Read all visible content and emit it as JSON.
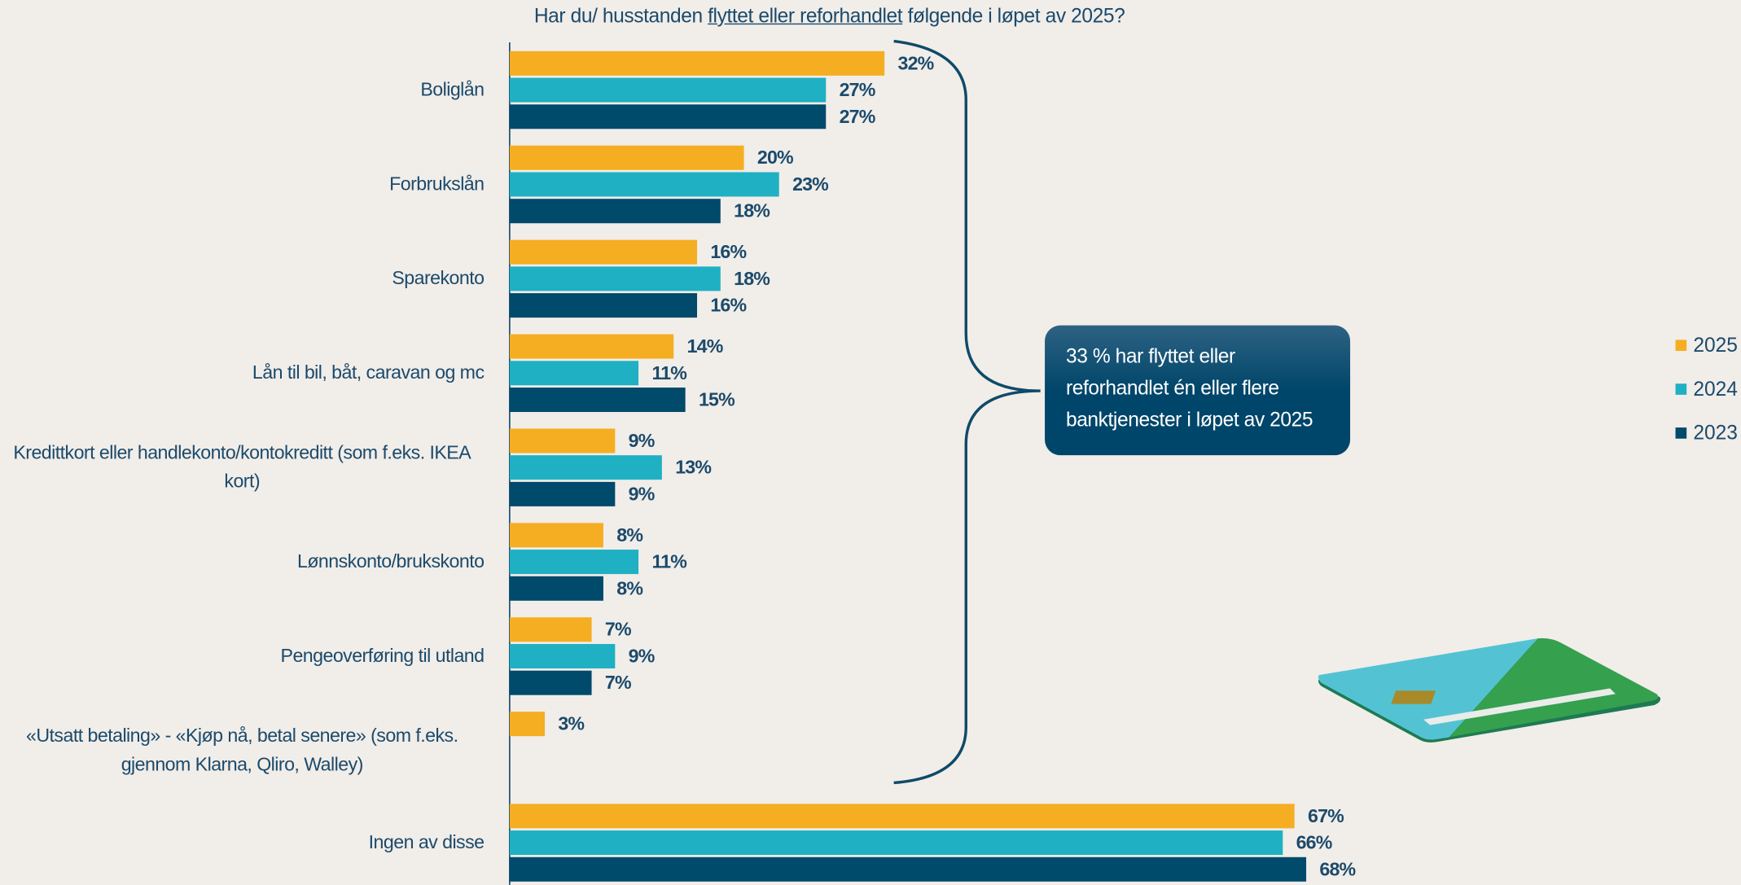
{
  "chart_data": {
    "type": "bar",
    "orientation": "horizontal",
    "title_parts": [
      "Har du/ husstanden",
      "flyttet eller reforhandlet",
      "følgende i løpet av 2025?"
    ],
    "categories": [
      "Boliglån",
      "Forbrukslån",
      "Sparekonto",
      "Lån til bil, båt, caravan og mc",
      "Kredittkort eller handlekonto/kontokreditt (som f.eks. IKEA kort)",
      "Lønnskonto/brukskonto",
      "Pengeoverføring til utland",
      "«Utsatt betaling» - «Kjøp nå, betal senere» (som f.eks. gjennom Klarna, Qliro, Walley)",
      "Ingen av disse"
    ],
    "series": [
      {
        "name": "2025",
        "color": "#f5ae22",
        "values": [
          32,
          20,
          16,
          14,
          9,
          8,
          7,
          3,
          67
        ],
        "value_labels": [
          "32%",
          "20%",
          "16%",
          "14%",
          "9%",
          "8%",
          "7%",
          "3%",
          "67%"
        ]
      },
      {
        "name": "2024",
        "color": "#1fb0c3",
        "values": [
          27,
          23,
          18,
          11,
          13,
          11,
          9,
          null,
          66
        ],
        "value_labels": [
          "27%",
          "23%",
          "18%",
          "11%",
          "13%",
          "11%",
          "9%",
          null,
          "66%"
        ]
      },
      {
        "name": "2023",
        "color": "#004a6b",
        "values": [
          27,
          18,
          16,
          15,
          9,
          8,
          7,
          null,
          68
        ],
        "value_labels": [
          "27%",
          "18%",
          "16%",
          "15%",
          "9%",
          "8%",
          "7%",
          null,
          "68%"
        ]
      }
    ],
    "annotation_lines": [
      "33 % har flyttet eller",
      "reforhandlet én eller flere",
      "banktjenester i løpet av 2025"
    ],
    "legend_position": "right"
  }
}
